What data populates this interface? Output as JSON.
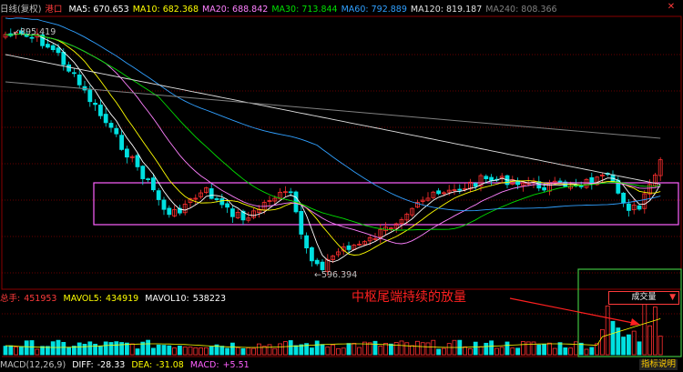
{
  "chart_data": {
    "type": "candlestick",
    "symbol": "港口",
    "period": "日线(复权)",
    "price_high": 895.419,
    "price_low": 596.394,
    "ma": [
      {
        "name": "MA5",
        "value": "670.653",
        "color": "#ffffff"
      },
      {
        "name": "MA10",
        "value": "682.368",
        "color": "#ffff00"
      },
      {
        "name": "MA20",
        "value": "688.842",
        "color": "#ff80ff"
      },
      {
        "name": "MA30",
        "value": "713.844",
        "color": "#00e000"
      },
      {
        "name": "MA60",
        "value": "792.889",
        "color": "#30a0ff"
      },
      {
        "name": "MA120",
        "value": "819.187",
        "color": "#e0e0e0"
      },
      {
        "name": "MA240",
        "value": "808.366",
        "color": "#808080"
      }
    ],
    "volume": {
      "label": "总手:",
      "value": "451953",
      "mavol5_label": "MAVOL5:",
      "mavol5": "434919",
      "mavol10_label": "MAVOL10:",
      "mavol10": "538223"
    },
    "macd": {
      "label": "MACD(12,26,9)",
      "diff_label": "DIFF:",
      "diff": "-28.33",
      "dea_label": "DEA:",
      "dea": "-31.08",
      "macd_label": "MACD:",
      "macd": "+5.51"
    }
  },
  "ui": {
    "period_label": "日线(复权)",
    "symbol_label": "港口",
    "volume_dropdown": "成交量",
    "annotation": "中枢尾端持续的放量",
    "indicator_button": "指标说明",
    "high_marker": "895.419",
    "low_marker": "596.394",
    "colors": {
      "up": "#ff3030",
      "down": "#00e0e0",
      "grid": "#8a0000",
      "box": "#ff60ff",
      "highlight": "#40c040"
    }
  }
}
